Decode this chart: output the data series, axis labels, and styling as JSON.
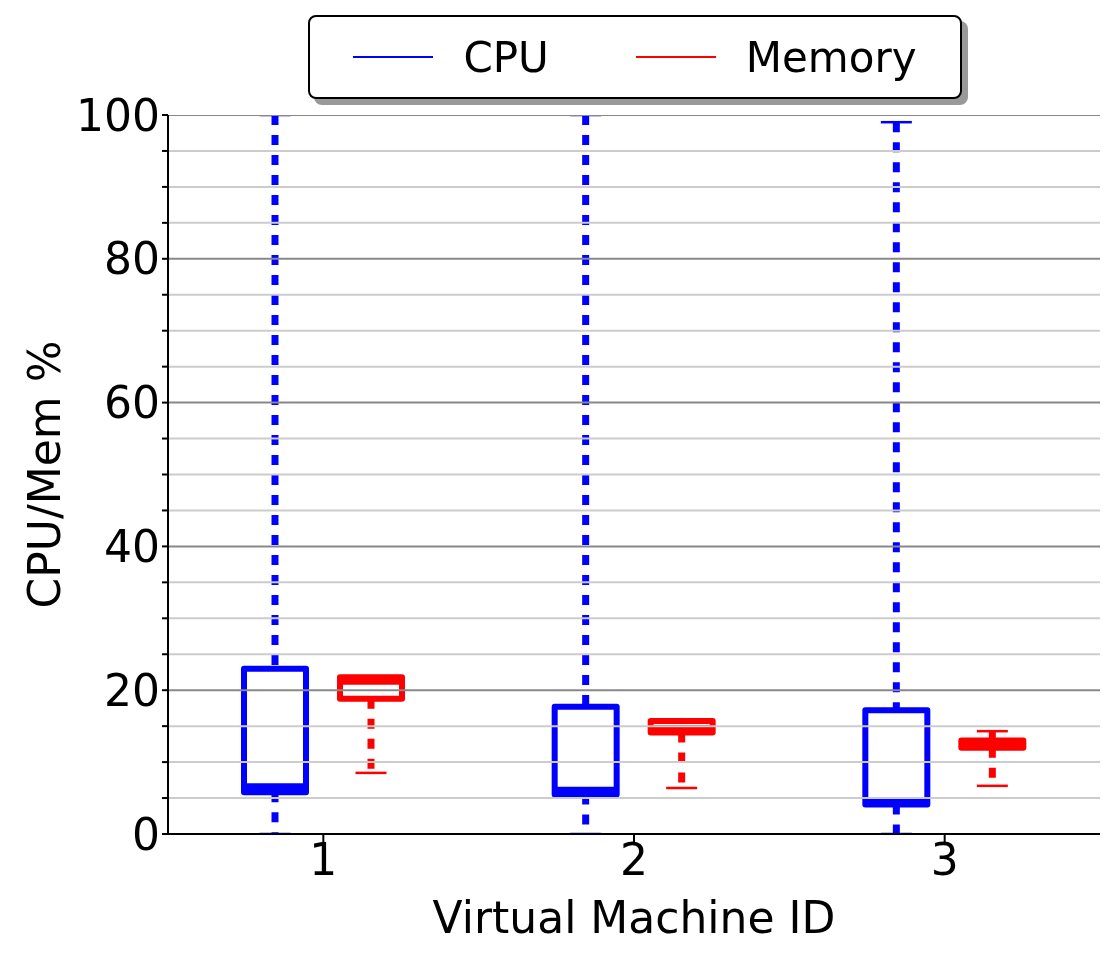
{
  "chart_data": {
    "type": "box",
    "xlabel": "Virtual Machine ID",
    "ylabel": "CPU/Mem %",
    "categories": [
      "1",
      "2",
      "3"
    ],
    "series": [
      {
        "name": "CPU",
        "color": "#0000ff",
        "boxes": [
          {
            "low": 0,
            "q1": 5.8,
            "median": 6.5,
            "q3": 23,
            "high": 100
          },
          {
            "low": 0,
            "q1": 5.5,
            "median": 6,
            "q3": 17.7,
            "high": 100
          },
          {
            "low": 0,
            "q1": 4.1,
            "median": 4.6,
            "q3": 17.2,
            "high": 99
          }
        ]
      },
      {
        "name": "Memory",
        "color": "#ff0000",
        "boxes": [
          {
            "low": 8.5,
            "q1": 18.8,
            "median": 21.3,
            "q3": 21.8,
            "high": 21.8
          },
          {
            "low": 6.4,
            "q1": 14.1,
            "median": 14.6,
            "q3": 15.7,
            "high": 15.7
          },
          {
            "low": 6.7,
            "q1": 12,
            "median": 12.5,
            "q3": 13,
            "high": 14.3
          }
        ]
      }
    ],
    "ylim": [
      0,
      100
    ],
    "yticks": [
      0,
      {
        "value": 5,
        "label": null
      },
      {
        "value": 10,
        "label": null
      },
      {
        "value": 15,
        "label": null
      },
      20,
      {
        "value": 25,
        "label": null
      },
      {
        "value": 30,
        "label": null
      },
      {
        "value": 35,
        "label": null
      },
      40,
      {
        "value": 45,
        "label": null
      },
      {
        "value": 50,
        "label": null
      },
      {
        "value": 55,
        "label": null
      },
      60,
      {
        "value": 65,
        "label": null
      },
      {
        "value": 70,
        "label": null
      },
      {
        "value": 75,
        "label": null
      },
      80,
      {
        "value": 85,
        "label": null
      },
      {
        "value": 90,
        "label": null
      },
      {
        "value": 95,
        "label": null
      },
      100
    ],
    "grid": true,
    "legend": "top",
    "line_style": "dashed"
  }
}
